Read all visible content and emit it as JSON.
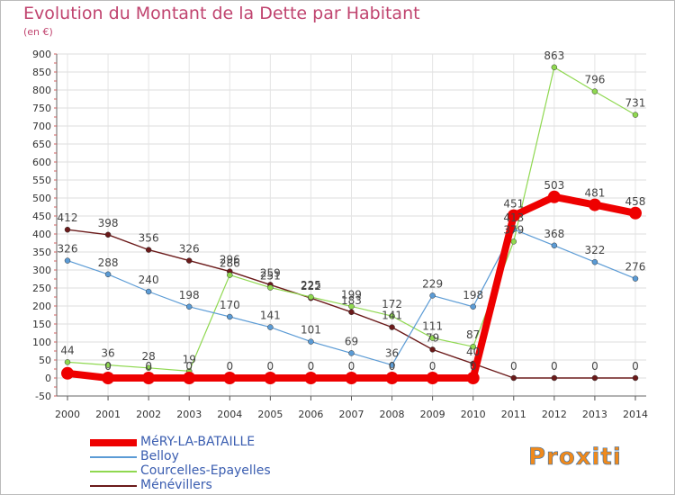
{
  "title": "Evolution du Montant de la Dette par Habitant",
  "subtitle": "(en €)",
  "logo_text": "Proxiti",
  "chart_data": {
    "type": "line",
    "x": [
      "2000",
      "2001",
      "2002",
      "2003",
      "2004",
      "2005",
      "2006",
      "2007",
      "2008",
      "2009",
      "2010",
      "2011",
      "2012",
      "2013",
      "2014"
    ],
    "ylim": [
      -50,
      900
    ],
    "yticks": [
      -50,
      0,
      50,
      100,
      150,
      200,
      250,
      300,
      350,
      400,
      450,
      500,
      550,
      600,
      650,
      700,
      750,
      800,
      850,
      900
    ],
    "grid": true,
    "legend_position": "bottom-left",
    "series": [
      {
        "name": "Ménévillers",
        "color": "#6b1a1a",
        "values": [
          412,
          398,
          356,
          326,
          296,
          259,
          222,
          183,
          141,
          79,
          40,
          0,
          0,
          0,
          0
        ],
        "labels": [
          "412",
          "398",
          "356",
          "326",
          "296",
          "259",
          "222",
          "183",
          "141",
          "79",
          "40",
          "0",
          "0",
          "0",
          "0"
        ]
      },
      {
        "name": "Courcelles-Epayelles",
        "color": "#8fd850",
        "values": [
          44,
          36,
          28,
          19,
          286,
          251,
          225,
          199,
          172,
          111,
          87,
          379,
          863,
          796,
          731
        ],
        "labels": [
          "44",
          "36",
          "28",
          "19",
          "286",
          "251",
          "225",
          "199",
          "172",
          "111",
          "87",
          "379",
          "863",
          "796",
          "731"
        ]
      },
      {
        "name": "Belloy",
        "color": "#5b9bd5",
        "values": [
          326,
          288,
          240,
          198,
          170,
          141,
          101,
          69,
          36,
          229,
          198,
          413,
          368,
          322,
          276
        ],
        "labels": [
          "326",
          "288",
          "240",
          "198",
          "170",
          "141",
          "101",
          "69",
          "36",
          "229",
          "198",
          "413",
          "368",
          "322",
          "276"
        ]
      },
      {
        "name": "MéRY-LA-BATAILLE",
        "color": "#ee0000",
        "values": [
          13,
          0,
          0,
          0,
          0,
          0,
          0,
          0,
          0,
          0,
          0,
          451,
          503,
          481,
          458
        ],
        "labels": [
          "",
          "0",
          "0",
          "0",
          "0",
          "0",
          "0",
          "0",
          "0",
          "0",
          "0",
          "451",
          "503",
          "481",
          "458"
        ]
      }
    ],
    "legend_order": [
      "MéRY-LA-BATAILLE",
      "Belloy",
      "Courcelles-Epayelles",
      "Ménévillers"
    ]
  }
}
